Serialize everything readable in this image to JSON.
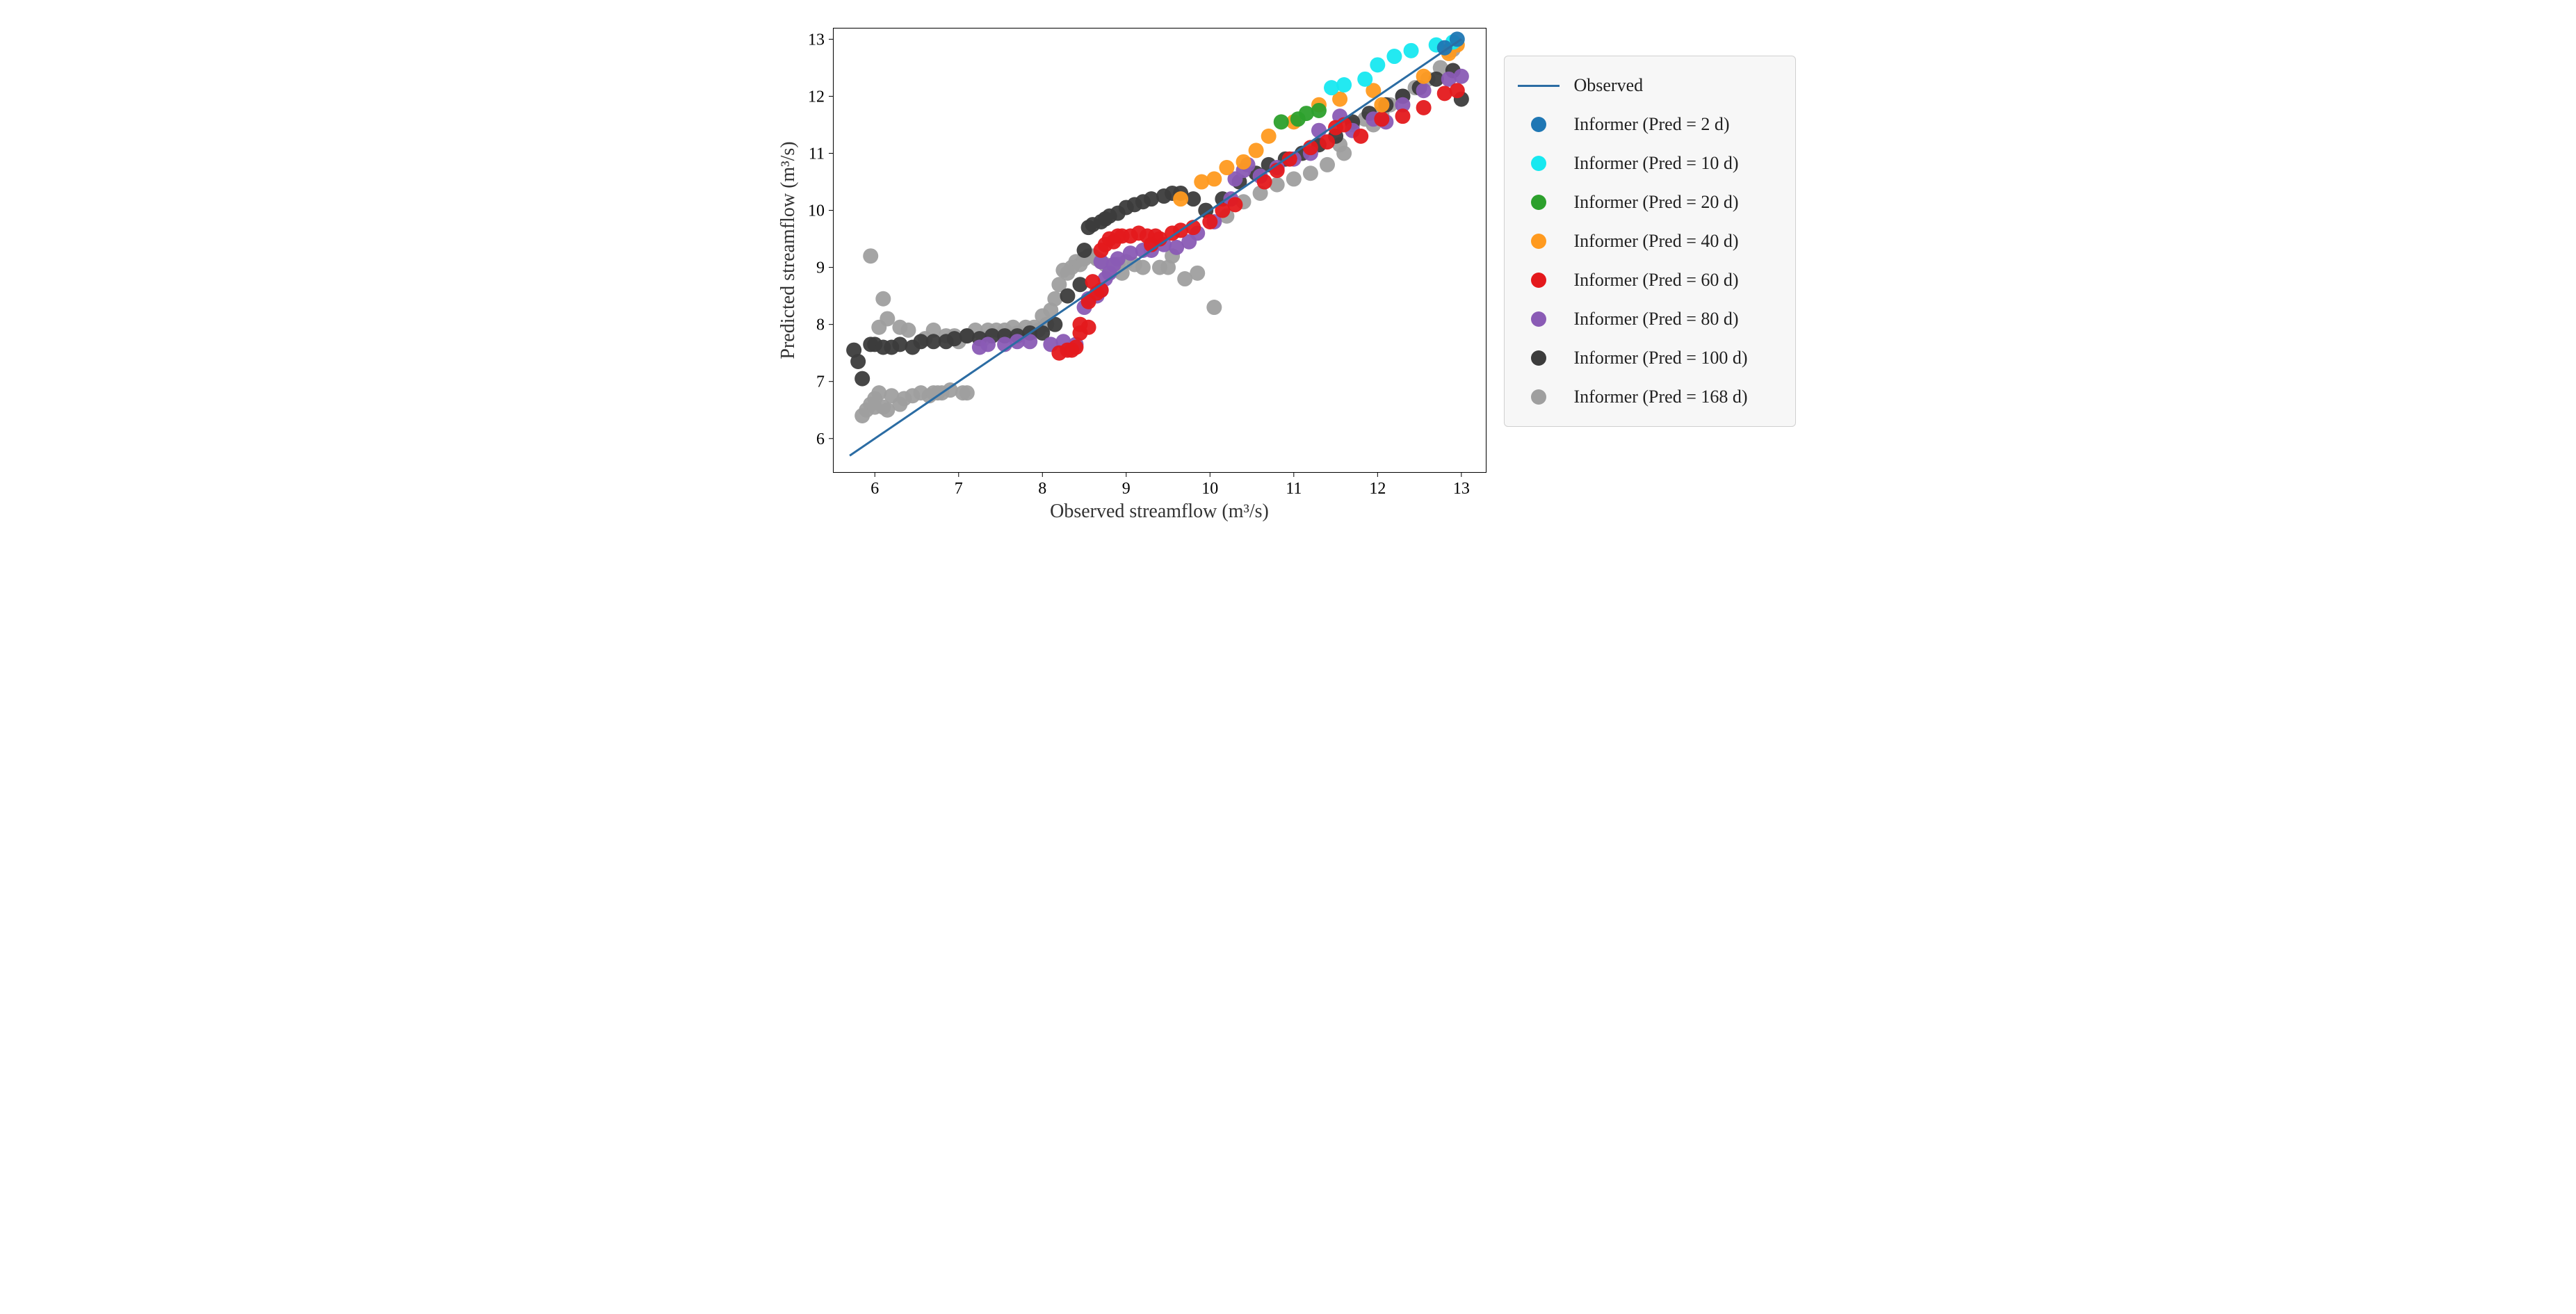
{
  "chart": {
    "type": "scatter",
    "background_color": "#ffffff",
    "border_color": "#000000",
    "border_width": 1,
    "font_family": "Times New Roman",
    "tick_fontsize": 24,
    "axis_title_fontsize": 28,
    "x": {
      "label": "Observed streamflow (m³/s)",
      "min": 5.5,
      "max": 13.3,
      "ticks": [
        6,
        7,
        8,
        9,
        10,
        11,
        12,
        13
      ],
      "tick_length": 6
    },
    "y": {
      "label": "Predicted streamflow (m³/s)",
      "min": 5.4,
      "max": 13.2,
      "ticks": [
        6,
        7,
        8,
        9,
        10,
        11,
        12,
        13
      ],
      "tick_length": 6
    },
    "reference_line": {
      "label": "Observed",
      "color": "#2b6ca3",
      "width": 3,
      "x1": 5.7,
      "y1": 5.7,
      "x2": 13.0,
      "y2": 13.0
    },
    "marker_radius": 11,
    "marker_opacity": 0.95,
    "legend": {
      "background": "#f7f7f7",
      "border_color": "#d0d0d0",
      "label_fontsize": 26
    },
    "series": [
      {
        "key": "pred2",
        "label": "Informer (Pred = 2 d)",
        "color": "#1f77b4",
        "points": [
          [
            12.95,
            13.0
          ],
          [
            12.8,
            12.85
          ]
        ]
      },
      {
        "key": "pred10",
        "label": "Informer (Pred = 10 d)",
        "color": "#17e8f0",
        "points": [
          [
            11.45,
            12.15
          ],
          [
            11.6,
            12.2
          ],
          [
            11.85,
            12.3
          ],
          [
            12.0,
            12.55
          ],
          [
            12.2,
            12.7
          ],
          [
            12.4,
            12.8
          ],
          [
            12.7,
            12.9
          ],
          [
            12.9,
            12.95
          ]
        ]
      },
      {
        "key": "pred20",
        "label": "Informer (Pred = 20 d)",
        "color": "#2ca02c",
        "points": [
          [
            10.85,
            11.55
          ],
          [
            11.05,
            11.6
          ],
          [
            11.15,
            11.7
          ],
          [
            11.3,
            11.75
          ]
        ]
      },
      {
        "key": "pred40",
        "label": "Informer (Pred = 40 d)",
        "color": "#ff9a1f",
        "points": [
          [
            9.65,
            10.2
          ],
          [
            9.9,
            10.5
          ],
          [
            10.05,
            10.55
          ],
          [
            10.2,
            10.75
          ],
          [
            10.4,
            10.85
          ],
          [
            10.55,
            11.05
          ],
          [
            10.7,
            11.3
          ],
          [
            11.0,
            11.55
          ],
          [
            11.3,
            11.85
          ],
          [
            11.55,
            11.95
          ],
          [
            11.95,
            12.1
          ],
          [
            12.05,
            11.85
          ],
          [
            12.55,
            12.35
          ],
          [
            12.85,
            12.75
          ],
          [
            12.95,
            12.9
          ]
        ]
      },
      {
        "key": "pred60",
        "label": "Informer (Pred = 60 d)",
        "color": "#e4191c",
        "points": [
          [
            8.2,
            7.5
          ],
          [
            8.3,
            7.55
          ],
          [
            8.35,
            7.55
          ],
          [
            8.4,
            7.6
          ],
          [
            8.45,
            7.85
          ],
          [
            8.45,
            8.0
          ],
          [
            8.55,
            7.95
          ],
          [
            8.55,
            8.4
          ],
          [
            8.6,
            8.75
          ],
          [
            8.65,
            8.55
          ],
          [
            8.7,
            8.6
          ],
          [
            8.7,
            9.3
          ],
          [
            8.75,
            9.4
          ],
          [
            8.8,
            9.5
          ],
          [
            8.85,
            9.45
          ],
          [
            8.9,
            9.55
          ],
          [
            8.95,
            9.55
          ],
          [
            9.05,
            9.55
          ],
          [
            9.15,
            9.6
          ],
          [
            9.25,
            9.55
          ],
          [
            9.3,
            9.4
          ],
          [
            9.35,
            9.55
          ],
          [
            9.4,
            9.5
          ],
          [
            9.55,
            9.6
          ],
          [
            9.65,
            9.65
          ],
          [
            9.8,
            9.7
          ],
          [
            10.0,
            9.8
          ],
          [
            10.15,
            10.0
          ],
          [
            10.3,
            10.1
          ],
          [
            10.65,
            10.5
          ],
          [
            10.8,
            10.7
          ],
          [
            10.95,
            10.9
          ],
          [
            11.2,
            11.1
          ],
          [
            11.4,
            11.2
          ],
          [
            11.5,
            11.45
          ],
          [
            11.6,
            11.5
          ],
          [
            11.8,
            11.3
          ],
          [
            12.05,
            11.6
          ],
          [
            12.3,
            11.65
          ],
          [
            12.55,
            11.8
          ],
          [
            12.8,
            12.05
          ],
          [
            12.95,
            12.1
          ]
        ]
      },
      {
        "key": "pred80",
        "label": "Informer (Pred = 80 d)",
        "color": "#8a5bb5",
        "points": [
          [
            7.25,
            7.6
          ],
          [
            7.35,
            7.65
          ],
          [
            7.55,
            7.65
          ],
          [
            7.7,
            7.7
          ],
          [
            7.85,
            7.7
          ],
          [
            8.1,
            7.65
          ],
          [
            8.25,
            7.7
          ],
          [
            8.4,
            7.65
          ],
          [
            8.5,
            8.3
          ],
          [
            8.55,
            8.45
          ],
          [
            8.65,
            8.5
          ],
          [
            8.7,
            8.6
          ],
          [
            8.7,
            9.1
          ],
          [
            8.75,
            8.8
          ],
          [
            8.8,
            8.9
          ],
          [
            8.85,
            9.05
          ],
          [
            8.9,
            9.15
          ],
          [
            9.05,
            9.25
          ],
          [
            9.2,
            9.3
          ],
          [
            9.3,
            9.3
          ],
          [
            9.45,
            9.4
          ],
          [
            9.6,
            9.35
          ],
          [
            9.75,
            9.45
          ],
          [
            9.85,
            9.6
          ],
          [
            10.05,
            9.8
          ],
          [
            10.25,
            10.2
          ],
          [
            10.3,
            10.55
          ],
          [
            10.4,
            10.7
          ],
          [
            10.45,
            10.8
          ],
          [
            10.6,
            10.6
          ],
          [
            10.8,
            10.75
          ],
          [
            11.0,
            10.9
          ],
          [
            11.2,
            11.0
          ],
          [
            11.3,
            11.4
          ],
          [
            11.55,
            11.65
          ],
          [
            11.7,
            11.4
          ],
          [
            11.95,
            11.6
          ],
          [
            12.1,
            11.55
          ],
          [
            12.3,
            11.85
          ],
          [
            12.55,
            12.1
          ],
          [
            12.85,
            12.3
          ],
          [
            13.0,
            12.35
          ]
        ]
      },
      {
        "key": "pred100",
        "label": "Informer (Pred = 100 d)",
        "color": "#3c3c3c",
        "points": [
          [
            5.75,
            7.55
          ],
          [
            5.8,
            7.35
          ],
          [
            5.85,
            7.05
          ],
          [
            5.95,
            7.65
          ],
          [
            6.0,
            7.65
          ],
          [
            6.1,
            7.6
          ],
          [
            6.2,
            7.6
          ],
          [
            6.3,
            7.65
          ],
          [
            6.45,
            7.6
          ],
          [
            6.55,
            7.7
          ],
          [
            6.7,
            7.7
          ],
          [
            6.85,
            7.7
          ],
          [
            6.95,
            7.75
          ],
          [
            7.1,
            7.8
          ],
          [
            7.25,
            7.75
          ],
          [
            7.4,
            7.8
          ],
          [
            7.55,
            7.8
          ],
          [
            7.7,
            7.8
          ],
          [
            7.85,
            7.85
          ],
          [
            8.0,
            7.85
          ],
          [
            8.15,
            8.0
          ],
          [
            8.3,
            8.5
          ],
          [
            8.45,
            8.7
          ],
          [
            8.5,
            9.3
          ],
          [
            8.55,
            9.7
          ],
          [
            8.6,
            9.75
          ],
          [
            8.7,
            9.8
          ],
          [
            8.75,
            9.85
          ],
          [
            8.8,
            9.9
          ],
          [
            8.9,
            9.95
          ],
          [
            9.0,
            10.05
          ],
          [
            9.1,
            10.1
          ],
          [
            9.2,
            10.15
          ],
          [
            9.3,
            10.2
          ],
          [
            9.45,
            10.25
          ],
          [
            9.55,
            10.3
          ],
          [
            9.65,
            10.3
          ],
          [
            9.8,
            10.2
          ],
          [
            9.95,
            10.0
          ],
          [
            10.15,
            10.2
          ],
          [
            10.35,
            10.5
          ],
          [
            10.55,
            10.65
          ],
          [
            10.7,
            10.8
          ],
          [
            10.9,
            10.9
          ],
          [
            11.1,
            11.0
          ],
          [
            11.3,
            11.15
          ],
          [
            11.5,
            11.3
          ],
          [
            11.7,
            11.55
          ],
          [
            11.9,
            11.7
          ],
          [
            12.1,
            11.85
          ],
          [
            12.3,
            12.0
          ],
          [
            12.5,
            12.15
          ],
          [
            12.7,
            12.3
          ],
          [
            12.9,
            12.45
          ],
          [
            13.0,
            11.95
          ]
        ]
      },
      {
        "key": "pred168",
        "label": "Informer (Pred = 168 d)",
        "color": "#9f9f9f",
        "points": [
          [
            5.85,
            6.4
          ],
          [
            5.9,
            6.5
          ],
          [
            5.95,
            9.2
          ],
          [
            5.95,
            6.6
          ],
          [
            6.0,
            6.55
          ],
          [
            6.0,
            6.7
          ],
          [
            6.05,
            7.95
          ],
          [
            6.05,
            6.8
          ],
          [
            6.1,
            6.55
          ],
          [
            6.1,
            8.45
          ],
          [
            6.15,
            6.5
          ],
          [
            6.15,
            8.1
          ],
          [
            6.2,
            6.75
          ],
          [
            6.3,
            7.95
          ],
          [
            6.3,
            6.6
          ],
          [
            6.35,
            6.7
          ],
          [
            6.4,
            7.9
          ],
          [
            6.45,
            6.75
          ],
          [
            6.55,
            6.8
          ],
          [
            6.6,
            7.75
          ],
          [
            6.65,
            6.75
          ],
          [
            6.7,
            6.8
          ],
          [
            6.7,
            7.9
          ],
          [
            6.75,
            6.8
          ],
          [
            6.8,
            6.8
          ],
          [
            6.85,
            7.8
          ],
          [
            6.9,
            6.85
          ],
          [
            6.95,
            7.8
          ],
          [
            7.0,
            7.7
          ],
          [
            7.05,
            6.8
          ],
          [
            7.1,
            7.8
          ],
          [
            7.1,
            6.8
          ],
          [
            7.2,
            7.9
          ],
          [
            7.3,
            7.75
          ],
          [
            7.35,
            7.9
          ],
          [
            7.45,
            7.9
          ],
          [
            7.55,
            7.9
          ],
          [
            7.65,
            7.95
          ],
          [
            7.7,
            7.85
          ],
          [
            7.8,
            7.95
          ],
          [
            7.9,
            7.95
          ],
          [
            7.95,
            7.9
          ],
          [
            8.0,
            8.15
          ],
          [
            8.05,
            8.0
          ],
          [
            8.1,
            8.25
          ],
          [
            8.15,
            8.45
          ],
          [
            8.2,
            8.7
          ],
          [
            8.25,
            8.95
          ],
          [
            8.3,
            8.9
          ],
          [
            8.35,
            9.0
          ],
          [
            8.4,
            9.1
          ],
          [
            8.45,
            9.05
          ],
          [
            8.5,
            9.15
          ],
          [
            8.55,
            9.2
          ],
          [
            8.6,
            9.2
          ],
          [
            8.65,
            9.15
          ],
          [
            8.7,
            9.1
          ],
          [
            8.75,
            9.05
          ],
          [
            8.8,
            9.0
          ],
          [
            8.85,
            8.95
          ],
          [
            8.9,
            9.05
          ],
          [
            8.95,
            8.9
          ],
          [
            9.0,
            9.1
          ],
          [
            9.1,
            9.05
          ],
          [
            9.2,
            9.0
          ],
          [
            9.4,
            9.0
          ],
          [
            9.5,
            9.0
          ],
          [
            9.55,
            9.2
          ],
          [
            9.7,
            8.8
          ],
          [
            9.85,
            8.9
          ],
          [
            10.05,
            8.3
          ],
          [
            10.2,
            9.9
          ],
          [
            10.4,
            10.15
          ],
          [
            10.6,
            10.3
          ],
          [
            10.8,
            10.45
          ],
          [
            11.0,
            10.55
          ],
          [
            11.2,
            10.65
          ],
          [
            11.4,
            10.8
          ],
          [
            11.55,
            11.15
          ],
          [
            11.6,
            11.0
          ],
          [
            11.7,
            11.5
          ],
          [
            11.85,
            11.6
          ],
          [
            11.95,
            11.5
          ],
          [
            12.05,
            11.7
          ],
          [
            12.15,
            11.85
          ],
          [
            12.3,
            12.0
          ],
          [
            12.45,
            12.15
          ],
          [
            12.6,
            12.3
          ],
          [
            12.75,
            12.5
          ],
          [
            12.85,
            12.8
          ],
          [
            12.9,
            12.82
          ]
        ]
      }
    ]
  }
}
